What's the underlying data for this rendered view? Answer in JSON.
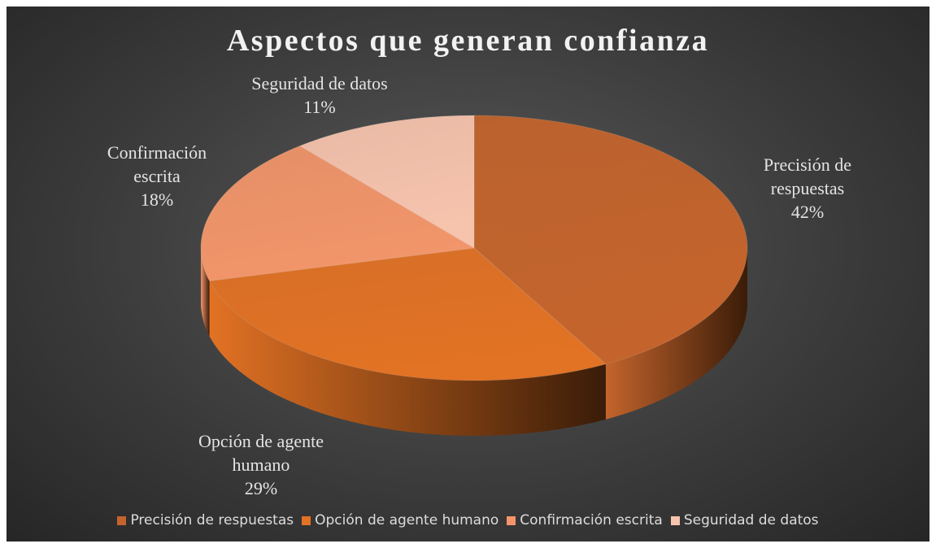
{
  "chart_data": {
    "type": "pie3d",
    "title": "Aspectos que generan confianza",
    "categories": [
      "Precisión de respuestas",
      "Opción de agente humano",
      "Confirmación escrita",
      "Seguridad de datos"
    ],
    "values": [
      42,
      29,
      18,
      11
    ],
    "value_labels": [
      "42%",
      "29%",
      "18%",
      "11%"
    ],
    "colors": [
      "#c4642c",
      "#e27224",
      "#f2956a",
      "#f6c3ad"
    ],
    "legend": "bottom"
  }
}
